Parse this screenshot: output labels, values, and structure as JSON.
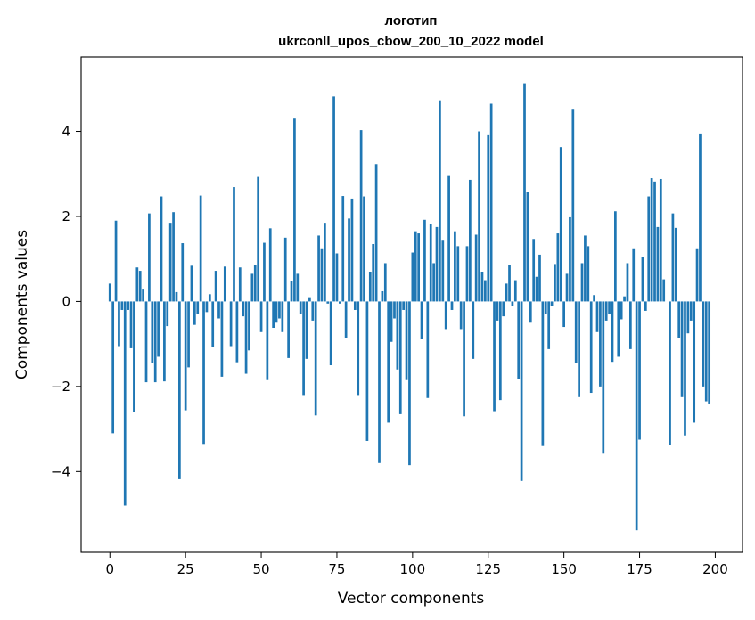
{
  "chart_data": {
    "type": "bar",
    "title_line1": "логотип",
    "title_line2": "ukrconll_upos_cbow_200_10_2022 model",
    "xlabel": "Vector components",
    "ylabel": "Components values",
    "xlim": [
      -9.5,
      209
    ],
    "ylim": [
      -5.9,
      5.75
    ],
    "xticks": [
      0,
      25,
      50,
      75,
      100,
      125,
      150,
      175,
      200
    ],
    "yticks": [
      -4,
      -2,
      0,
      2,
      4
    ],
    "ytick_labels": [
      "−4",
      "−2",
      "0",
      "2",
      "4"
    ],
    "grid": false,
    "bar_color": "#1f77b4",
    "values": [
      0.42,
      -3.1,
      1.9,
      -1.05,
      -0.2,
      -4.8,
      -0.2,
      -1.1,
      -2.6,
      0.8,
      0.72,
      0.3,
      -1.9,
      2.07,
      -1.45,
      -1.9,
      -1.3,
      2.47,
      -1.88,
      -0.58,
      1.85,
      2.1,
      0.22,
      -4.18,
      1.37,
      -2.56,
      -1.55,
      0.84,
      -0.55,
      -0.3,
      2.49,
      -3.35,
      -0.25,
      0.17,
      -1.08,
      0.72,
      -0.4,
      -1.77,
      0.82,
      0.0,
      -1.05,
      2.69,
      -1.43,
      0.8,
      -0.35,
      -1.7,
      -1.15,
      0.65,
      0.85,
      2.93,
      -0.72,
      1.38,
      -1.85,
      1.72,
      -0.62,
      -0.5,
      -0.4,
      -0.72,
      1.5,
      -1.33,
      0.49,
      4.3,
      0.65,
      -0.3,
      -2.2,
      -1.35,
      0.1,
      -0.45,
      -2.68,
      1.55,
      1.25,
      1.85,
      -0.05,
      -1.5,
      4.82,
      1.13,
      -0.05,
      2.48,
      -0.85,
      1.95,
      2.42,
      -0.2,
      -2.2,
      4.03,
      2.47,
      -3.28,
      0.7,
      1.35,
      3.23,
      -3.8,
      0.24,
      0.9,
      -2.85,
      -0.95,
      -0.4,
      -1.6,
      -2.65,
      -0.2,
      -1.85,
      -3.85,
      1.15,
      1.65,
      1.6,
      -0.88,
      1.92,
      -2.27,
      1.82,
      0.9,
      1.75,
      4.73,
      1.45,
      -0.65,
      2.95,
      -0.2,
      1.65,
      1.3,
      -0.65,
      -2.7,
      1.3,
      2.86,
      -1.35,
      1.57,
      4.0,
      0.7,
      0.5,
      3.93,
      4.65,
      -2.58,
      -0.45,
      -2.32,
      -0.35,
      0.42,
      0.85,
      -0.1,
      0.5,
      -1.82,
      -4.22,
      5.13,
      2.58,
      -0.5,
      1.47,
      0.58,
      1.1,
      -3.4,
      -0.3,
      -1.12,
      -0.1,
      0.88,
      1.6,
      3.63,
      -0.6,
      0.65,
      1.98,
      4.53,
      -1.45,
      -2.25,
      0.9,
      1.55,
      1.3,
      -2.15,
      0.15,
      -0.72,
      -2.0,
      -3.58,
      -0.45,
      -0.3,
      -1.42,
      2.12,
      -1.3,
      -0.42,
      0.12,
      0.9,
      -1.12,
      1.25,
      -5.38,
      -3.25,
      1.05,
      -0.22,
      2.47,
      2.9,
      2.82,
      1.75,
      2.88,
      0.52,
      0.0,
      -3.38,
      2.07,
      1.73,
      -0.85,
      -2.25,
      -3.15,
      -0.75,
      -0.45,
      -2.85,
      1.25,
      3.95,
      -2.0,
      -2.35,
      -2.4
    ]
  }
}
